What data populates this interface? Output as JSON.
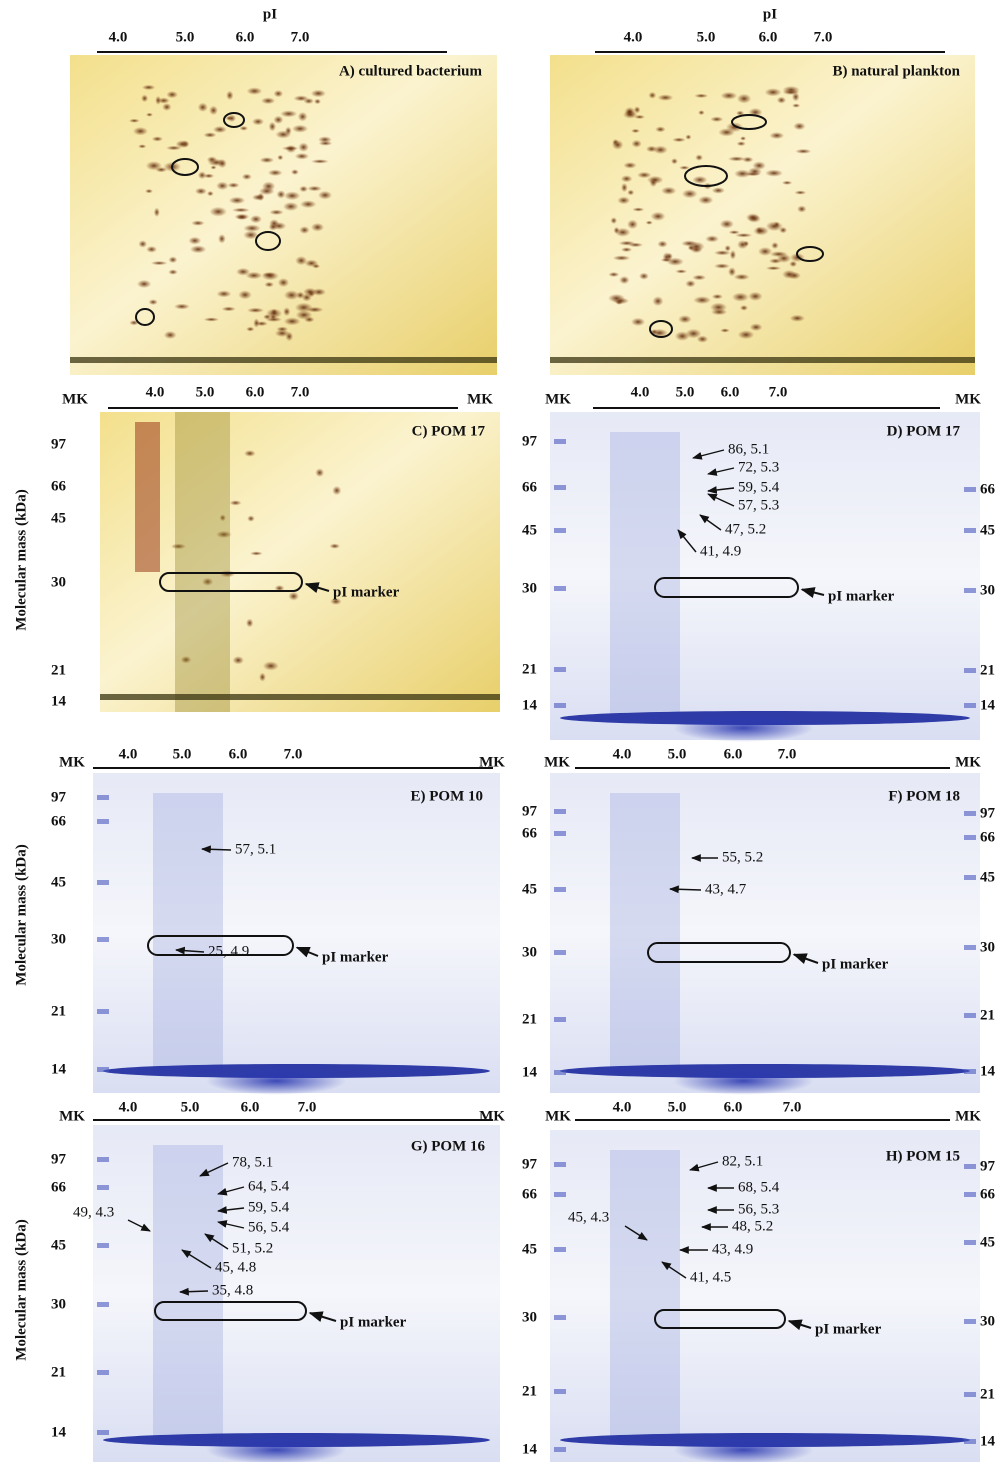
{
  "y_axis_label": "Molecular mass (kDa)",
  "panels": [
    {
      "title": "A) cultured bacterium",
      "axis_label": "pI",
      "pI_ticks": [
        "4.0",
        "5.0",
        "6.0",
        "7.0"
      ]
    },
    {
      "title": "B) natural plankton",
      "axis_label": "pI",
      "pI_ticks": [
        "4.0",
        "5.0",
        "6.0",
        "7.0"
      ]
    },
    {
      "title": "C) POM 17",
      "lane_left": "MK",
      "lane_right": "MK",
      "pI_ticks": [
        "4.0",
        "5.0",
        "6.0",
        "7.0"
      ],
      "mass_left": [
        "97",
        "66",
        "45",
        "30",
        "21",
        "14"
      ],
      "marker_label": "pI marker"
    },
    {
      "title": "D) POM 17",
      "lane_left": "MK",
      "lane_right": "MK",
      "pI_ticks": [
        "4.0",
        "5.0",
        "6.0",
        "7.0"
      ],
      "mass_left": [
        "97",
        "66",
        "45",
        "30",
        "21",
        "14"
      ],
      "mass_right": [
        "66",
        "45",
        "30",
        "21",
        "14"
      ],
      "spots": [
        "86, 5.1",
        "72, 5.3",
        "59, 5.4",
        "57, 5.3",
        "47, 5.2",
        "41, 4.9"
      ],
      "marker_label": "pI marker"
    },
    {
      "title": "E) POM 10",
      "lane_left": "MK",
      "lane_right": "MK",
      "pI_ticks": [
        "4.0",
        "5.0",
        "6.0",
        "7.0"
      ],
      "mass_left": [
        "97",
        "66",
        "45",
        "30",
        "21",
        "14"
      ],
      "spots": [
        "57, 5.1",
        "25, 4.9"
      ],
      "marker_label": "pI marker"
    },
    {
      "title": "F) POM 18",
      "lane_left": "MK",
      "lane_right": "MK",
      "pI_ticks": [
        "4.0",
        "5.0",
        "6.0",
        "7.0"
      ],
      "mass_left": [
        "97",
        "66",
        "45",
        "30",
        "21",
        "14"
      ],
      "mass_right": [
        "97",
        "66",
        "45",
        "30",
        "21",
        "14"
      ],
      "spots": [
        "55, 5.2",
        "43, 4.7"
      ],
      "marker_label": "pI marker"
    },
    {
      "title": "G) POM 16",
      "lane_left": "MK",
      "lane_right": "MK",
      "pI_ticks": [
        "4.0",
        "5.0",
        "6.0",
        "7.0"
      ],
      "mass_left": [
        "97",
        "66",
        "45",
        "30",
        "21",
        "14"
      ],
      "spots": [
        "78, 5.1",
        "64, 5.4",
        "59, 5.4",
        "56, 5.4",
        "51, 5.2",
        "45, 4.8",
        "49, 4.3",
        "35, 4.8"
      ],
      "marker_label": "pI marker"
    },
    {
      "title": "H) POM 15",
      "lane_left": "MK",
      "lane_right": "MK",
      "pI_ticks": [
        "4.0",
        "5.0",
        "6.0",
        "7.0"
      ],
      "mass_left": [
        "97",
        "66",
        "45",
        "30",
        "21",
        "14"
      ],
      "mass_right": [
        "97",
        "66",
        "45",
        "30",
        "21",
        "14"
      ],
      "spots": [
        "82, 5.1",
        "68, 5.4",
        "56, 5.3",
        "48, 5.2",
        "43, 4.9",
        "41, 4.5",
        "45, 4.3"
      ],
      "marker_label": "pI marker"
    }
  ]
}
